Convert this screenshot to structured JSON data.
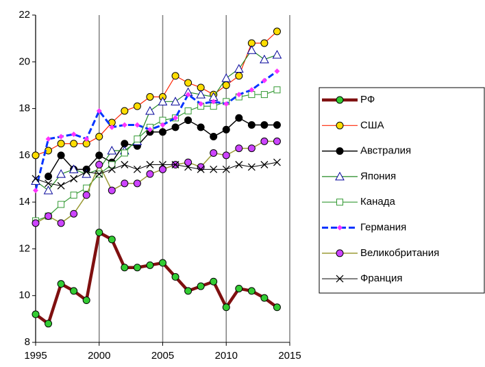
{
  "chart_data": {
    "type": "line",
    "x": [
      1995,
      1996,
      1997,
      1998,
      1999,
      2000,
      2001,
      2002,
      2003,
      2004,
      2005,
      2006,
      2007,
      2008,
      2009,
      2010,
      2011,
      2012,
      2013,
      2014
    ],
    "xlim": [
      1995,
      2015
    ],
    "xticks": [
      1995,
      2000,
      2005,
      2010,
      2015
    ],
    "ylim": [
      8,
      22
    ],
    "yticks": [
      8,
      10,
      12,
      14,
      16,
      18,
      20,
      22
    ],
    "grid": "x",
    "legend": "right",
    "series": [
      {
        "name": "РФ",
        "color": "#7f1010",
        "width": 4.5,
        "marker": "circle",
        "marker_color": "#33cc33",
        "values": [
          9.2,
          8.8,
          10.5,
          10.2,
          9.8,
          12.7,
          12.4,
          11.2,
          11.2,
          11.3,
          11.4,
          10.8,
          10.2,
          10.4,
          10.6,
          9.5,
          10.3,
          10.2,
          9.9,
          9.5
        ]
      },
      {
        "name": "США",
        "color": "#ff2200",
        "width": 1.2,
        "marker": "circle",
        "marker_color": "#ffdd00",
        "values": [
          16.0,
          16.2,
          16.5,
          16.5,
          16.5,
          16.8,
          17.4,
          17.9,
          18.1,
          18.5,
          18.5,
          19.4,
          19.1,
          18.9,
          18.6,
          19.0,
          19.4,
          20.8,
          20.8,
          21.3
        ]
      },
      {
        "name": "Австралия",
        "color": "#000000",
        "width": 1.5,
        "marker": "circle",
        "marker_color": "#000000",
        "values": [
          null,
          15.1,
          16.0,
          15.4,
          15.4,
          16.0,
          15.7,
          16.5,
          16.4,
          17.0,
          17.0,
          17.2,
          17.5,
          17.2,
          16.8,
          17.1,
          17.6,
          17.3,
          17.3,
          17.3
        ]
      },
      {
        "name": "Япония",
        "color": "#228822",
        "width": 1.2,
        "marker": "triangle",
        "marker_color": "#ffffff",
        "marker_stroke": "#000099",
        "values": [
          14.9,
          14.5,
          15.2,
          15.4,
          15.2,
          15.4,
          16.2,
          16.2,
          16.6,
          17.9,
          18.3,
          18.3,
          18.7,
          18.6,
          18.5,
          19.3,
          19.7,
          20.5,
          20.1,
          20.3
        ]
      },
      {
        "name": "Канада",
        "color": "#339933",
        "width": 1.2,
        "marker": "square",
        "marker_color": "#ffffff",
        "marker_stroke": "#339933",
        "values": [
          13.2,
          13.4,
          13.9,
          14.3,
          14.6,
          15.2,
          15.6,
          16.1,
          16.7,
          17.2,
          17.5,
          17.6,
          17.9,
          18.1,
          18.1,
          18.3,
          18.5,
          18.6,
          18.6,
          18.8
        ]
      },
      {
        "name": "Германия",
        "color": "#0033ff",
        "width": 3,
        "dash": "9 4",
        "marker": "diamond",
        "marker_color": "#ff33ff",
        "values": [
          14.5,
          16.7,
          16.8,
          16.9,
          16.7,
          17.9,
          17.2,
          17.3,
          17.3,
          17.1,
          17.3,
          17.6,
          18.6,
          18.2,
          18.3,
          18.2,
          18.6,
          18.8,
          19.2,
          19.6
        ]
      },
      {
        "name": "Великобритания",
        "color": "#999933",
        "width": 1.5,
        "marker": "circle",
        "marker_color": "#cc44ff",
        "values": [
          13.1,
          13.4,
          13.1,
          13.5,
          14.3,
          15.6,
          14.5,
          14.8,
          14.8,
          15.2,
          15.4,
          15.6,
          15.7,
          15.5,
          16.1,
          16.0,
          16.3,
          16.3,
          16.6,
          16.6
        ]
      },
      {
        "name": "Франция",
        "color": "#000000",
        "width": 1,
        "marker": "x",
        "marker_color": "#000000",
        "values": [
          15.0,
          14.8,
          14.7,
          15.0,
          15.3,
          15.2,
          15.4,
          15.6,
          15.4,
          15.6,
          15.6,
          15.6,
          15.5,
          15.4,
          15.4,
          15.4,
          15.6,
          15.5,
          15.6,
          15.7
        ]
      }
    ]
  }
}
